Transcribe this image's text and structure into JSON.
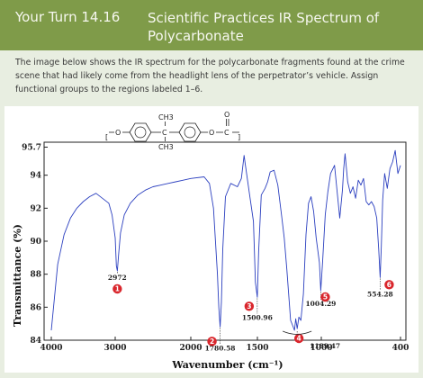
{
  "header": {
    "number": "Your Turn 14.16",
    "title": "Scientific Practices   IR Spectrum of Polycarbonate"
  },
  "intro_text": "The image below shows the IR spectrum for the polycarbonate fragments found at the crime scene that had likely come from the headlight lens of the perpetrator’s vehicle. Assign functional groups to the regions labeled 1–6.",
  "colors": {
    "header": "#7f9b49",
    "spectrum": "#2b3fbf",
    "badge": "#d9262c"
  },
  "molecule": {
    "top_group": "CH3",
    "bottom_group": "CH3",
    "center_atom": "C",
    "carbonyl_o": "O",
    "carbonyl_c": "C",
    "left_o": "O",
    "right_o": "O",
    "bracket_left": "[",
    "bracket_right": "]"
  },
  "chart_data": {
    "type": "line",
    "xlabel": "Wavenumber (cm⁻¹)",
    "ylabel": "Transmittance (%)",
    "xlim": [
      4000,
      400
    ],
    "ylim": [
      84,
      96
    ],
    "x_ticks": [
      "4000",
      "3000",
      "2000",
      "1500",
      "1000",
      "400"
    ],
    "y_ticks": [
      "95.7",
      "94",
      "92",
      "90",
      "88",
      "86",
      "84"
    ],
    "series": [
      {
        "x": [
          4000,
          3900,
          3800,
          3700,
          3600,
          3500,
          3400,
          3300,
          3200,
          3100,
          3050,
          3000,
          2985,
          2972,
          2955,
          2930,
          2880,
          2800,
          2700,
          2600,
          2500,
          2400,
          2300,
          2200,
          2100,
          2000,
          1900,
          1860,
          1830,
          1800,
          1790,
          1780,
          1770,
          1760,
          1740,
          1700,
          1650,
          1620,
          1600,
          1590,
          1560,
          1530,
          1515,
          1501,
          1490,
          1470,
          1440,
          1420,
          1400,
          1370,
          1340,
          1310,
          1290,
          1270,
          1240,
          1225,
          1210,
          1200,
          1189,
          1175,
          1160,
          1140,
          1120,
          1100,
          1080,
          1060,
          1040,
          1015,
          1004,
          990,
          970,
          950,
          930,
          900,
          880,
          860,
          840,
          830,
          820,
          800,
          780,
          760,
          740,
          720,
          700,
          680,
          660,
          640,
          620,
          600,
          580,
          565,
          554,
          545,
          535,
          520,
          500,
          480,
          460,
          440,
          420,
          400
        ],
        "y": [
          84.6,
          88.6,
          90.4,
          91.4,
          92.0,
          92.4,
          92.7,
          92.9,
          92.6,
          92.3,
          91.6,
          90.2,
          88.5,
          88.2,
          89.2,
          90.5,
          91.6,
          92.3,
          92.8,
          93.1,
          93.3,
          93.4,
          93.5,
          93.6,
          93.7,
          93.8,
          93.9,
          93.5,
          92.0,
          88.0,
          86.0,
          84.8,
          86.3,
          89.5,
          92.7,
          93.5,
          93.3,
          93.8,
          95.2,
          94.6,
          92.9,
          91.2,
          87.5,
          86.6,
          89.4,
          92.8,
          93.2,
          93.6,
          94.2,
          94.3,
          93.4,
          91.5,
          90.2,
          88.3,
          85.2,
          84.9,
          84.6,
          85.3,
          84.7,
          85.4,
          85.2,
          86.8,
          90.4,
          92.3,
          92.7,
          91.8,
          90.2,
          88.7,
          87.0,
          88.8,
          91.6,
          93.0,
          94.1,
          94.6,
          93.0,
          91.4,
          93.1,
          94.4,
          95.3,
          93.6,
          92.9,
          93.3,
          92.6,
          93.7,
          93.4,
          93.8,
          92.4,
          92.2,
          92.4,
          92.1,
          91.4,
          89.5,
          87.8,
          89.7,
          92.5,
          94.1,
          93.2,
          94.4,
          94.8,
          95.5,
          94.1,
          94.6
        ]
      }
    ],
    "annotations": [
      {
        "id": "1",
        "label": "2972",
        "x": 2972,
        "y": 88.2
      },
      {
        "id": "2",
        "label": "1780.58",
        "x": 1780,
        "y": 84.8
      },
      {
        "id": "3",
        "label": "1500.96",
        "x": 1501,
        "y": 86.6
      },
      {
        "id": "4",
        "label": "1189.47",
        "x": 1189,
        "y": 84.6
      },
      {
        "id": "5",
        "label": "1004.29",
        "x": 1004,
        "y": 87.0
      },
      {
        "id": "6",
        "label": "554.28",
        "x": 554,
        "y": 87.8
      }
    ]
  }
}
